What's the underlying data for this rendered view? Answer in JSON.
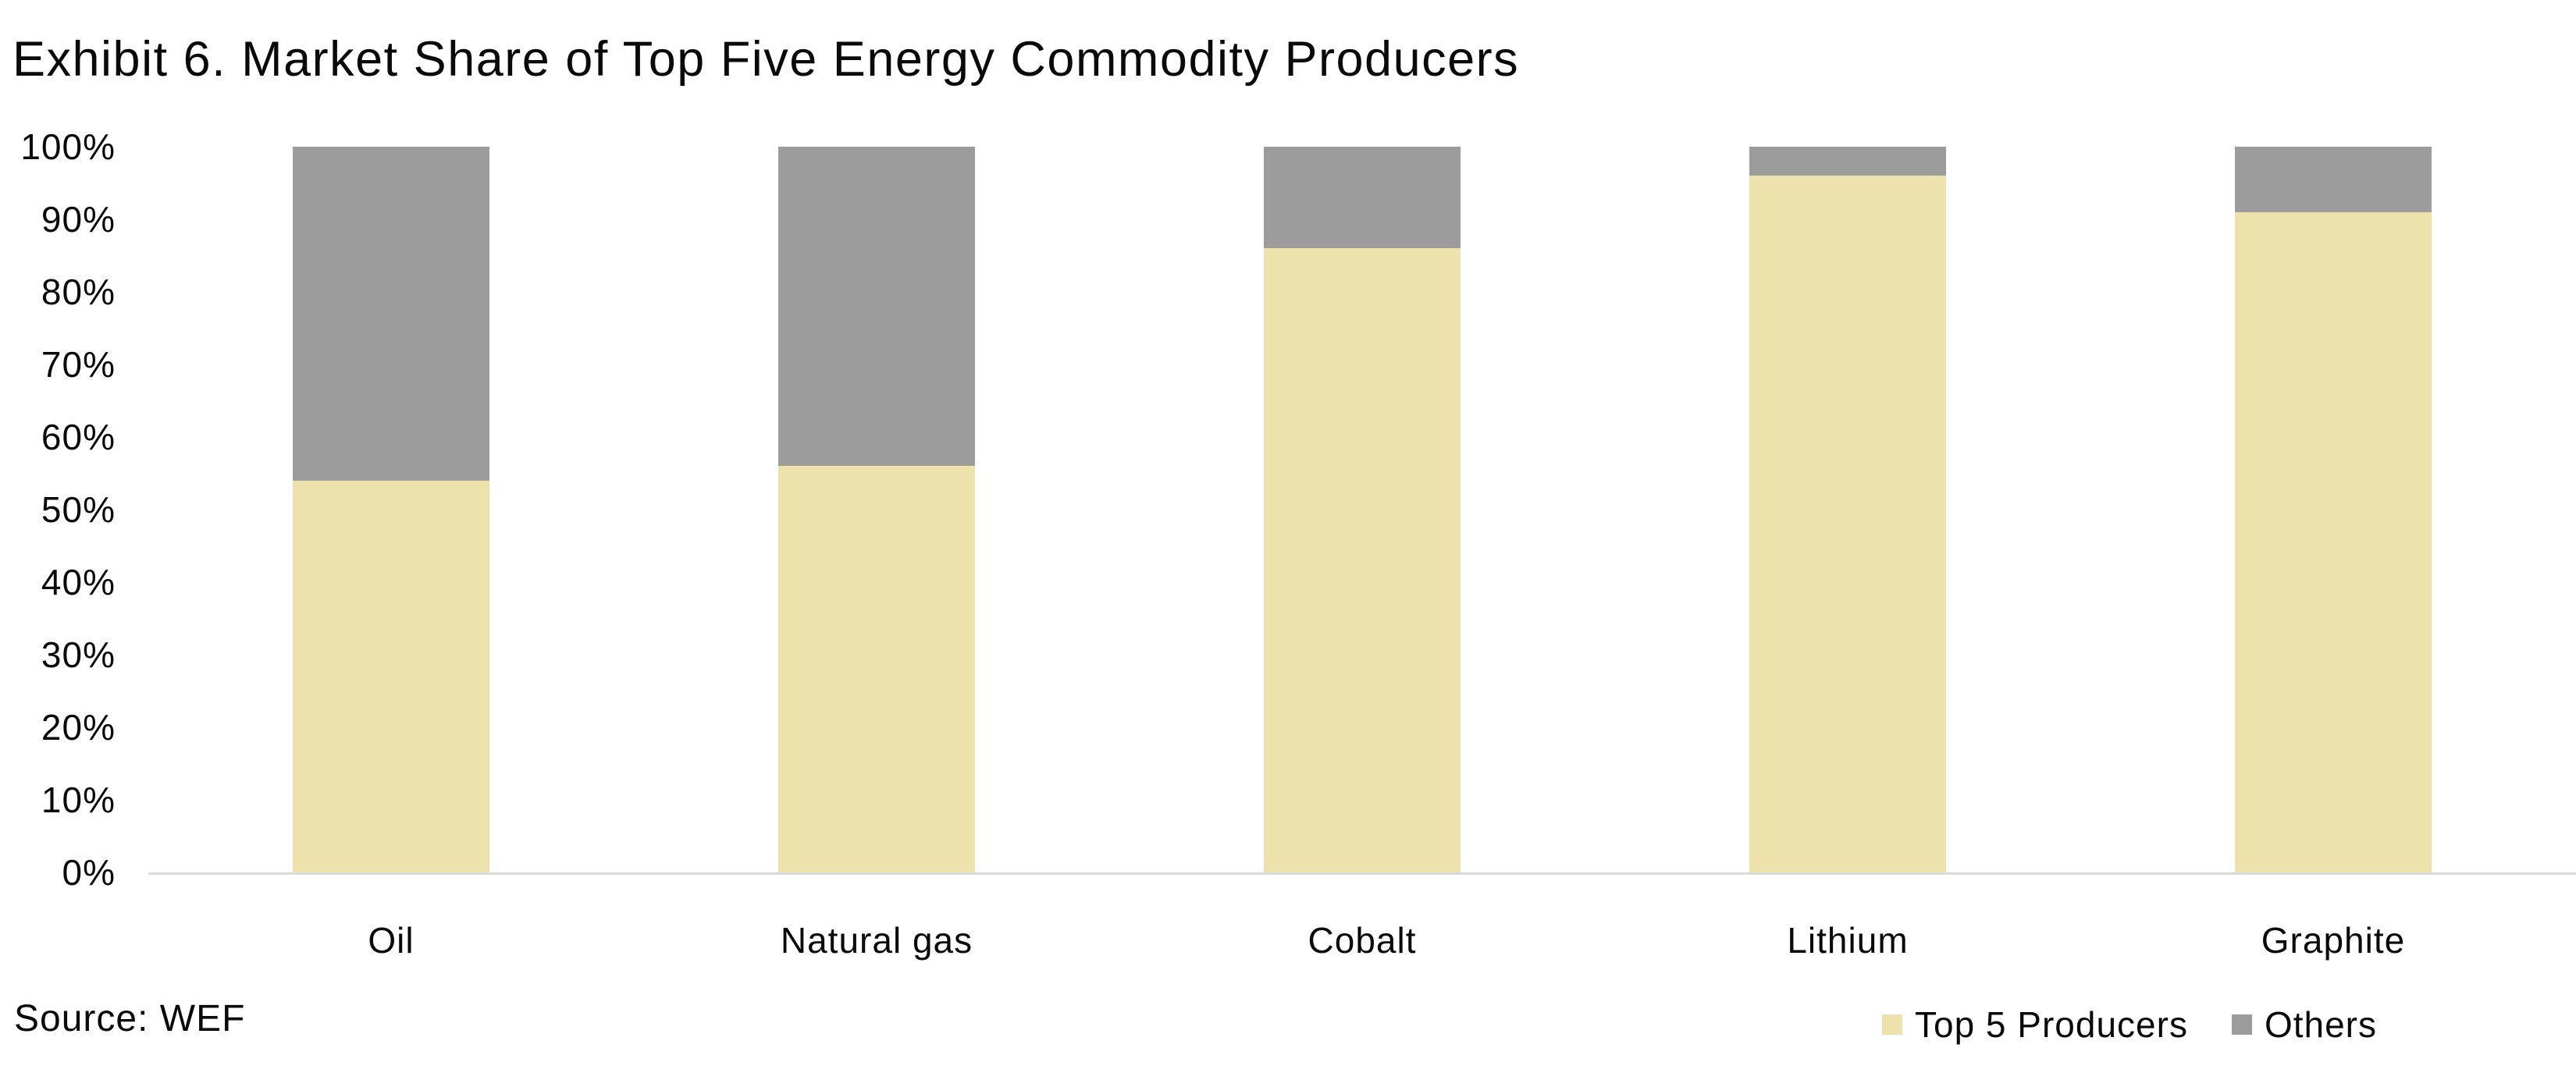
{
  "header": {
    "title": "Exhibit 6. Market Share of Top Five Energy Commodity Producers"
  },
  "footer": {
    "source": "Source: WEF"
  },
  "legend": {
    "items": [
      {
        "label": "Top 5 Producers",
        "color": "#EEE2AC"
      },
      {
        "label": "Others",
        "color": "#9C9C9C"
      }
    ]
  },
  "colors": {
    "top5_fill": "#EEE2AC",
    "others_fill": "#9C9C9C",
    "axis_line": "#D9D9D9",
    "text": "#0A0A0A",
    "background": "#FFFFFF"
  },
  "chart_data": {
    "type": "bar",
    "stacked": true,
    "title": "Exhibit 6. Market Share of Top Five Energy Commodity Producers",
    "categories": [
      "Oil",
      "Natural gas",
      "Cobalt",
      "Lithium",
      "Graphite"
    ],
    "series": [
      {
        "name": "Top 5 Producers",
        "color": "#EEE2AC",
        "values": [
          54,
          56,
          86,
          96,
          91
        ]
      },
      {
        "name": "Others",
        "color": "#9C9C9C",
        "values": [
          46,
          44,
          14,
          4,
          9
        ]
      }
    ],
    "value_unit": "%",
    "ylim": [
      0,
      100
    ],
    "ytick_step": 10,
    "ytick_labels": [
      "0%",
      "10%",
      "20%",
      "30%",
      "40%",
      "50%",
      "60%",
      "70%",
      "80%",
      "90%",
      "100%"
    ],
    "grid": false,
    "legend_position": "bottom-right",
    "source": "Source: WEF"
  }
}
